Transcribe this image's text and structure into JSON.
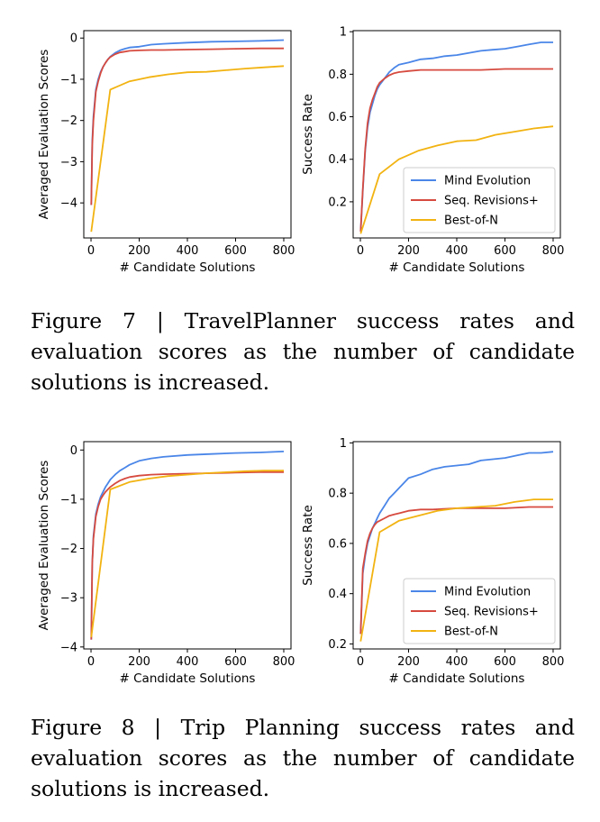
{
  "figures": [
    {
      "caption": "Figure 7 | TravelPlanner success rates and evaluation scores as the number of candidate solutions is increased.",
      "charts": [
        {
          "type": "line",
          "xlabel": "# Candidate Solutions",
          "ylabel": "Averaged Evaluation Scores",
          "xlim": [
            -30,
            830
          ],
          "ylim": [
            -4.85,
            0.18
          ],
          "xticks": [
            0,
            200,
            400,
            600,
            800
          ],
          "yticks": [
            0,
            -1,
            -2,
            -3,
            -4
          ],
          "legend": null,
          "series": [
            {
              "name": "Mind Evolution",
              "color": "#4a86e8",
              "x": [
                1,
                5,
                10,
                20,
                30,
                40,
                50,
                60,
                70,
                80,
                100,
                120,
                140,
                160,
                200,
                250,
                300,
                400,
                500,
                600,
                700,
                800
              ],
              "y": [
                -4.05,
                -2.5,
                -1.9,
                -1.25,
                -1.0,
                -0.82,
                -0.7,
                -0.6,
                -0.52,
                -0.45,
                -0.36,
                -0.3,
                -0.26,
                -0.23,
                -0.21,
                -0.16,
                -0.14,
                -0.11,
                -0.09,
                -0.08,
                -0.07,
                -0.05
              ]
            },
            {
              "name": "Seq. Revisions+",
              "color": "#d64a3f",
              "x": [
                1,
                5,
                10,
                20,
                30,
                40,
                50,
                60,
                70,
                80,
                100,
                120,
                140,
                160,
                200,
                250,
                300,
                400,
                500,
                600,
                700,
                800
              ],
              "y": [
                -4.05,
                -2.6,
                -2.0,
                -1.3,
                -1.05,
                -0.85,
                -0.7,
                -0.6,
                -0.52,
                -0.46,
                -0.39,
                -0.35,
                -0.33,
                -0.31,
                -0.3,
                -0.29,
                -0.29,
                -0.28,
                -0.27,
                -0.26,
                -0.25,
                -0.25
              ]
            },
            {
              "name": "Best-of-N",
              "color": "#f2b311",
              "x": [
                1,
                80,
                160,
                240,
                320,
                400,
                480,
                560,
                640,
                720,
                800
              ],
              "y": [
                -4.7,
                -1.25,
                -1.05,
                -0.95,
                -0.88,
                -0.83,
                -0.82,
                -0.78,
                -0.74,
                -0.71,
                -0.68
              ]
            }
          ]
        },
        {
          "type": "line",
          "xlabel": "# Candidate Solutions",
          "ylabel": "Success Rate",
          "xlim": [
            -30,
            830
          ],
          "ylim": [
            0.03,
            1.005
          ],
          "xticks": [
            0,
            200,
            400,
            600,
            800
          ],
          "yticks": [
            0.2,
            0.4,
            0.6,
            0.8,
            1.0
          ],
          "legend": "lower-right",
          "series": [
            {
              "name": "Mind Evolution",
              "color": "#4a86e8",
              "x": [
                1,
                10,
                20,
                30,
                40,
                50,
                60,
                70,
                80,
                100,
                120,
                140,
                160,
                200,
                250,
                300,
                350,
                400,
                450,
                500,
                550,
                600,
                650,
                700,
                750,
                800
              ],
              "y": [
                0.06,
                0.25,
                0.44,
                0.55,
                0.62,
                0.66,
                0.7,
                0.73,
                0.75,
                0.78,
                0.81,
                0.83,
                0.845,
                0.855,
                0.87,
                0.875,
                0.885,
                0.89,
                0.9,
                0.91,
                0.915,
                0.92,
                0.93,
                0.94,
                0.95,
                0.95
              ]
            },
            {
              "name": "Seq. Revisions+",
              "color": "#d64a3f",
              "x": [
                1,
                10,
                20,
                30,
                40,
                50,
                60,
                70,
                80,
                100,
                120,
                140,
                160,
                200,
                250,
                300,
                400,
                500,
                600,
                700,
                800
              ],
              "y": [
                0.06,
                0.26,
                0.45,
                0.57,
                0.64,
                0.68,
                0.71,
                0.74,
                0.76,
                0.78,
                0.795,
                0.805,
                0.81,
                0.815,
                0.82,
                0.82,
                0.82,
                0.82,
                0.825,
                0.825,
                0.825
              ]
            },
            {
              "name": "Best-of-N",
              "color": "#f2b311",
              "x": [
                1,
                80,
                160,
                240,
                320,
                400,
                480,
                560,
                640,
                720,
                800
              ],
              "y": [
                0.05,
                0.33,
                0.4,
                0.44,
                0.465,
                0.485,
                0.49,
                0.515,
                0.53,
                0.545,
                0.555
              ]
            }
          ]
        }
      ]
    },
    {
      "caption": "Figure 8 | Trip Planning success rates and evaluation scores as the number of candidate solutions is increased.",
      "charts": [
        {
          "type": "line",
          "xlabel": "# Candidate Solutions",
          "ylabel": "Averaged Evaluation Scores",
          "xlim": [
            -30,
            830
          ],
          "ylim": [
            -4.04,
            0.17
          ],
          "xticks": [
            0,
            200,
            400,
            600,
            800
          ],
          "yticks": [
            0,
            -1,
            -2,
            -3,
            -4
          ],
          "legend": null,
          "series": [
            {
              "name": "Mind Evolution",
              "color": "#4a86e8",
              "x": [
                1,
                5,
                10,
                20,
                30,
                40,
                50,
                60,
                70,
                80,
                100,
                120,
                140,
                160,
                200,
                250,
                300,
                400,
                500,
                600,
                700,
                800
              ],
              "y": [
                -3.85,
                -2.3,
                -1.75,
                -1.3,
                -1.1,
                -0.95,
                -0.85,
                -0.75,
                -0.68,
                -0.6,
                -0.5,
                -0.42,
                -0.36,
                -0.3,
                -0.22,
                -0.17,
                -0.14,
                -0.1,
                -0.08,
                -0.06,
                -0.05,
                -0.03
              ]
            },
            {
              "name": "Seq. Revisions+",
              "color": "#d64a3f",
              "x": [
                1,
                5,
                10,
                20,
                30,
                40,
                50,
                60,
                70,
                80,
                100,
                120,
                140,
                160,
                200,
                250,
                300,
                400,
                500,
                600,
                700,
                800
              ],
              "y": [
                -3.85,
                -2.3,
                -1.8,
                -1.35,
                -1.15,
                -1.0,
                -0.92,
                -0.85,
                -0.8,
                -0.75,
                -0.68,
                -0.62,
                -0.58,
                -0.55,
                -0.52,
                -0.5,
                -0.49,
                -0.48,
                -0.47,
                -0.46,
                -0.45,
                -0.45
              ]
            },
            {
              "name": "Best-of-N",
              "color": "#f2b311",
              "x": [
                1,
                80,
                160,
                240,
                320,
                400,
                480,
                560,
                640,
                720,
                800
              ],
              "y": [
                -3.8,
                -0.8,
                -0.65,
                -0.58,
                -0.53,
                -0.5,
                -0.47,
                -0.45,
                -0.43,
                -0.42,
                -0.42
              ]
            }
          ]
        },
        {
          "type": "line",
          "xlabel": "# Candidate Solutions",
          "ylabel": "Success Rate",
          "xlim": [
            -30,
            830
          ],
          "ylim": [
            0.18,
            1.005
          ],
          "xticks": [
            0,
            200,
            400,
            600,
            800
          ],
          "yticks": [
            0.2,
            0.4,
            0.6,
            0.8,
            1.0
          ],
          "legend": "lower-right",
          "series": [
            {
              "name": "Mind Evolution",
              "color": "#4a86e8",
              "x": [
                1,
                10,
                20,
                30,
                40,
                50,
                60,
                70,
                80,
                100,
                120,
                140,
                160,
                180,
                200,
                250,
                300,
                350,
                400,
                450,
                500,
                550,
                600,
                650,
                700,
                750,
                800
              ],
              "y": [
                0.24,
                0.48,
                0.55,
                0.6,
                0.63,
                0.66,
                0.68,
                0.7,
                0.72,
                0.75,
                0.78,
                0.8,
                0.82,
                0.84,
                0.86,
                0.875,
                0.895,
                0.905,
                0.91,
                0.915,
                0.93,
                0.935,
                0.94,
                0.95,
                0.96,
                0.96,
                0.965
              ]
            },
            {
              "name": "Seq. Revisions+",
              "color": "#d64a3f",
              "x": [
                1,
                10,
                20,
                30,
                40,
                50,
                60,
                70,
                80,
                100,
                120,
                140,
                160,
                200,
                250,
                300,
                400,
                500,
                600,
                700,
                800
              ],
              "y": [
                0.24,
                0.5,
                0.56,
                0.61,
                0.64,
                0.66,
                0.675,
                0.685,
                0.69,
                0.7,
                0.71,
                0.715,
                0.72,
                0.73,
                0.735,
                0.735,
                0.74,
                0.74,
                0.74,
                0.745,
                0.745
              ]
            },
            {
              "name": "Best-of-N",
              "color": "#f2b311",
              "x": [
                1,
                80,
                160,
                240,
                320,
                400,
                480,
                560,
                640,
                720,
                800
              ],
              "y": [
                0.21,
                0.645,
                0.69,
                0.71,
                0.73,
                0.74,
                0.745,
                0.75,
                0.765,
                0.775,
                0.775
              ]
            }
          ]
        }
      ]
    }
  ]
}
